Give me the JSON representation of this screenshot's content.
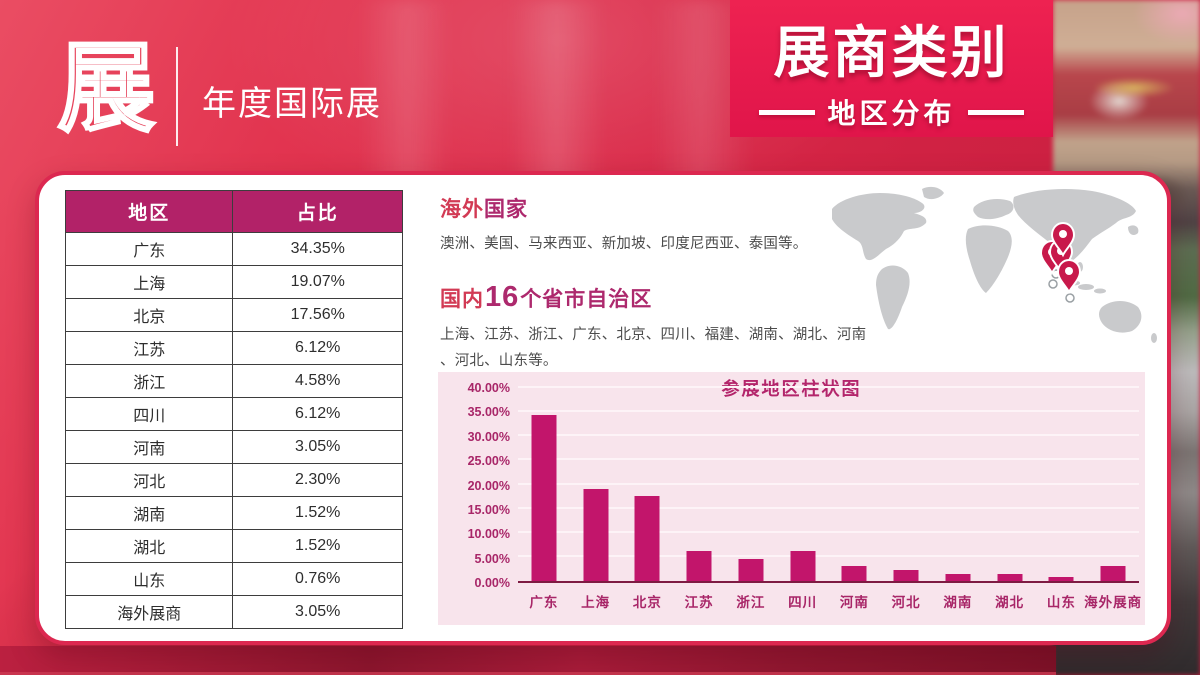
{
  "slide": {
    "logo_char": "展",
    "logo_subtitle": "年度国际展",
    "banner_title": "展商类别",
    "banner_subtitle": "地区分布"
  },
  "table": {
    "columns": [
      "地区",
      "占比"
    ],
    "rows": [
      [
        "广东",
        "34.35%"
      ],
      [
        "上海",
        "19.07%"
      ],
      [
        "北京",
        "17.56%"
      ],
      [
        "江苏",
        "6.12%"
      ],
      [
        "浙江",
        "4.58%"
      ],
      [
        "四川",
        "6.12%"
      ],
      [
        "河南",
        "3.05%"
      ],
      [
        "河北",
        "2.30%"
      ],
      [
        "湖南",
        "1.52%"
      ],
      [
        "湖北",
        "1.52%"
      ],
      [
        "山东",
        "0.76%"
      ],
      [
        "海外展商",
        "3.05%"
      ]
    ]
  },
  "info": {
    "overseas_title_part1": "海外",
    "overseas_title_part2": "国家",
    "overseas_text": "澳洲、美国、马来西亚、新加坡、印度尼西亚、泰国等。",
    "domestic_title_part1": "国内",
    "domestic_title_number": "16",
    "domestic_title_part2": "个省市自治区",
    "domestic_text": "上海、江苏、浙江、广东、北京、四川、福建、湖南、湖北、河南、河北、山东等。"
  },
  "chart_data": {
    "type": "bar",
    "title": "参展地区柱状图",
    "categories": [
      "广东",
      "上海",
      "北京",
      "江苏",
      "浙江",
      "四川",
      "河南",
      "河北",
      "湖南",
      "湖北",
      "山东",
      "海外展商"
    ],
    "values": [
      34.35,
      19.07,
      17.56,
      6.12,
      4.58,
      6.12,
      3.05,
      2.3,
      1.52,
      1.52,
      0.76,
      3.05
    ],
    "y_tick_labels": [
      "0.00%",
      "5.00%",
      "10.00%",
      "15.00%",
      "20.00%",
      "25.00%",
      "30.00%",
      "35.00%",
      "40.00%"
    ],
    "ylim": [
      0,
      40
    ],
    "y_step": 5,
    "grid": true,
    "legend": "none",
    "bar_color": "#c2156b",
    "panel_background": "#f8e4ec",
    "xlabel": "",
    "ylabel": ""
  },
  "colors": {
    "banner_red": "#e5174a",
    "card_border": "#dc2850",
    "table_header_bg": "#b22268",
    "accent_red": "#d23a54",
    "accent_magenta": "#ad296d",
    "map_gray": "#c9cacc",
    "pin_red": "#c8194b"
  }
}
